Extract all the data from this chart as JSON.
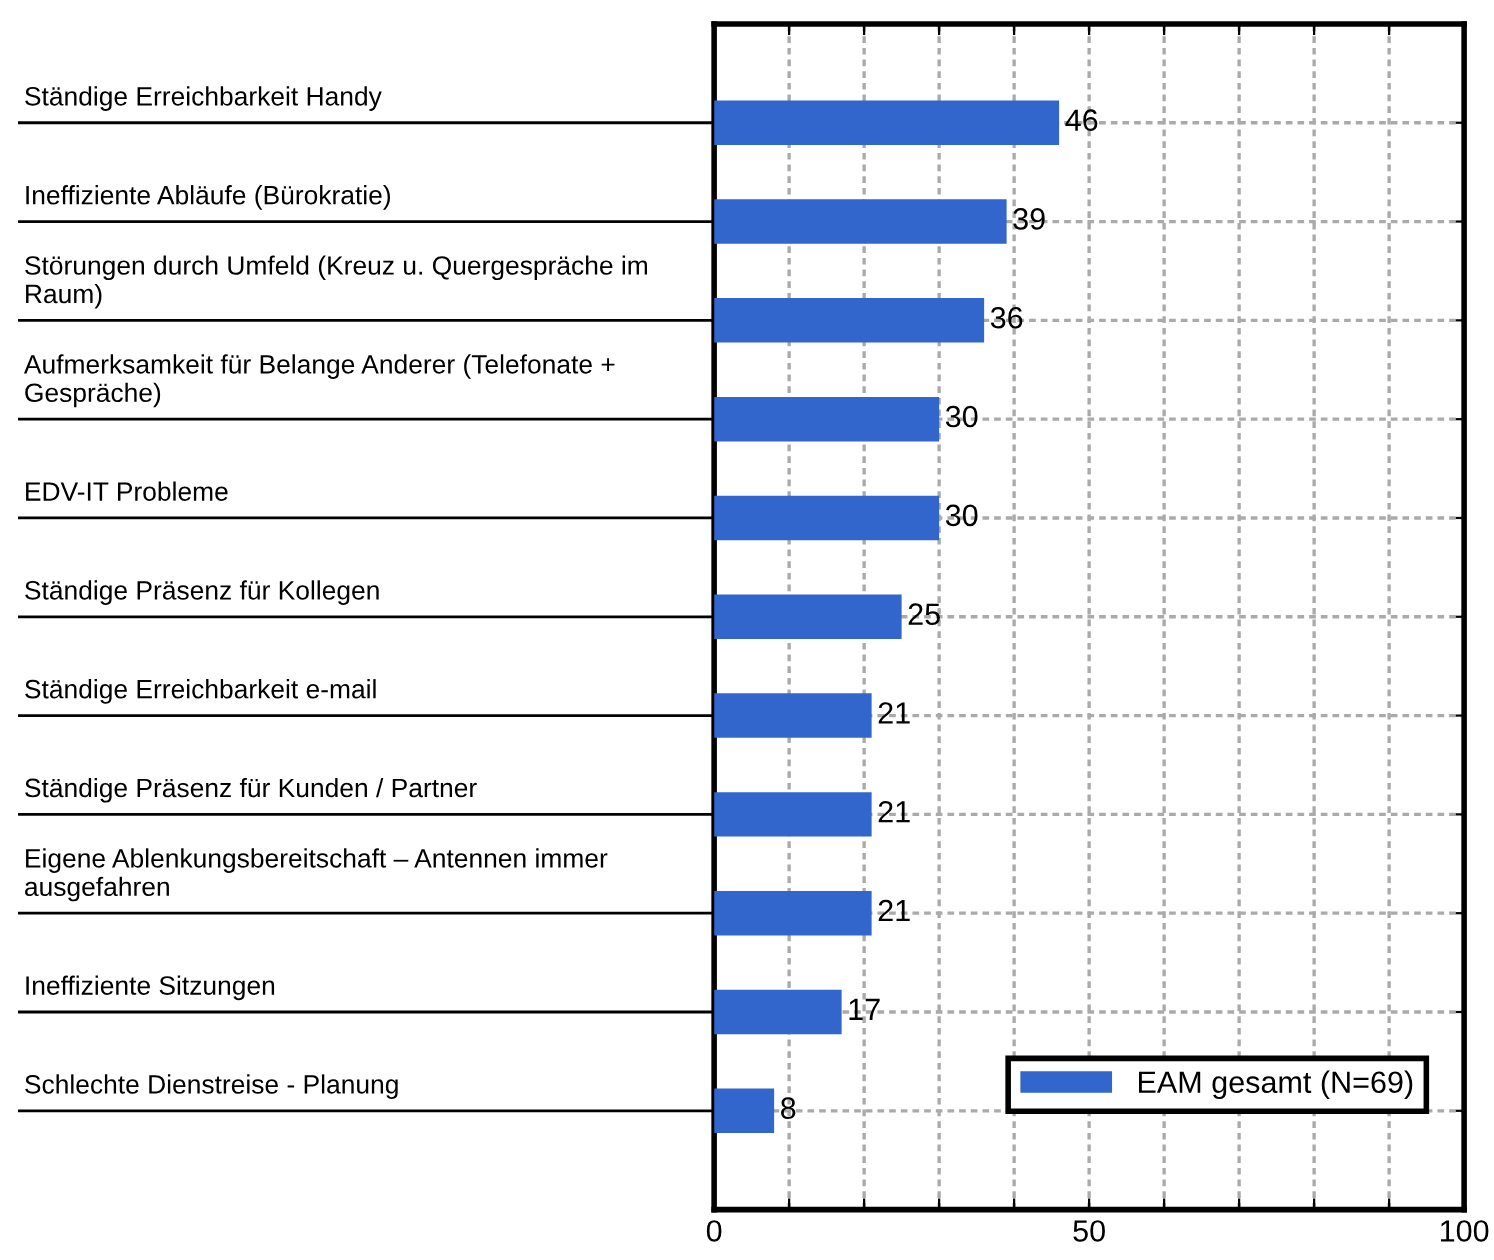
{
  "chart_data": {
    "type": "bar",
    "orientation": "horizontal",
    "categories": [
      "Ständige Erreichbarkeit Handy",
      "Ineffiziente Abläufe (Bürokratie)",
      "Störungen durch Umfeld (Kreuz u. Quergespräche im\nRaum)",
      "Aufmerksamkeit für Belange Anderer (Telefonate +\nGespräche)",
      "EDV-IT Probleme",
      "Ständige Präsenz für Kollegen",
      "Ständige Erreichbarkeit e-mail",
      "Ständige Präsenz für Kunden / Partner",
      "Eigene Ablenkungsbereitschaft – Antennen immer\nausgefahren",
      "Ineffiziente Sitzungen",
      "Schlechte Dienstreise - Planung"
    ],
    "series": [
      {
        "name": "EAM gesamt (N=69)",
        "color": "#3366cc",
        "values": [
          46,
          39,
          36,
          30,
          30,
          25,
          21,
          21,
          21,
          17,
          8
        ]
      }
    ],
    "xlim": [
      0,
      100
    ],
    "xticks": [
      0,
      {
        "value": 10,
        "label": null
      },
      {
        "value": 20,
        "label": null
      },
      {
        "value": 30,
        "label": null
      },
      {
        "value": 40,
        "label": null
      },
      50,
      {
        "value": 60,
        "label": null
      },
      {
        "value": 70,
        "label": null
      },
      {
        "value": 80,
        "label": null
      },
      {
        "value": 90,
        "label": null
      },
      100
    ],
    "data_labels": true,
    "grid": true,
    "legend": "bottom right"
  }
}
